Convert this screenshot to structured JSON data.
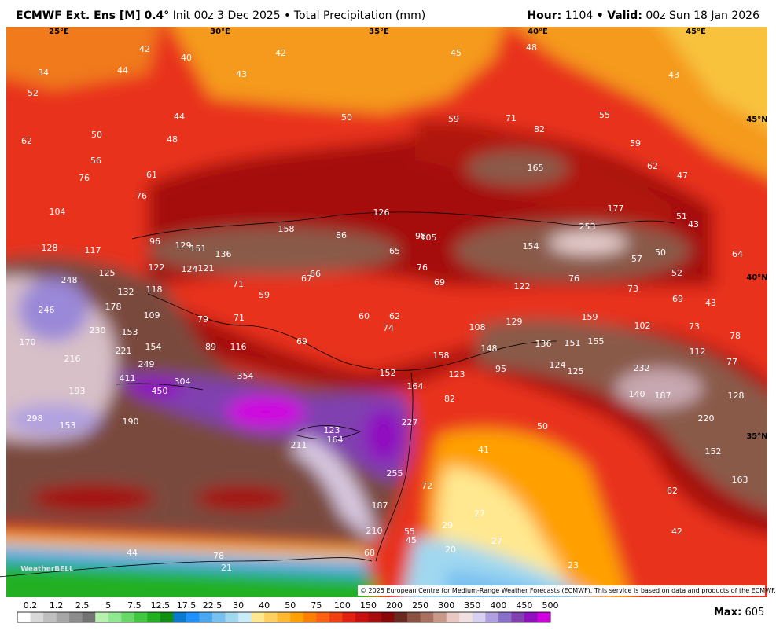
{
  "header": {
    "title": "ECMWF Ext. Ens [M] 0.4°",
    "subtitle": "Init 00z 3 Dec 2025 • Total Precipitation (mm)",
    "hour_label": "Hour:",
    "hour": "1104",
    "separator": "•",
    "valid_label": "Valid:",
    "valid": "00z Sun 18 Jan 2026"
  },
  "map": {
    "longitudes": [
      "25°E",
      "30°E",
      "35°E",
      "40°E",
      "45°E"
    ],
    "latitudes": [
      "45°N",
      "40°N",
      "35°N"
    ],
    "labels": [
      34,
      42,
      40,
      42,
      43,
      45,
      48,
      43,
      44,
      52,
      44,
      50,
      59,
      71,
      82,
      55,
      59,
      62,
      50,
      48,
      56,
      61,
      62,
      47,
      165,
      76,
      76,
      177,
      104,
      126,
      51,
      43,
      253,
      158,
      86,
      98,
      105,
      96,
      129,
      151,
      136,
      154,
      65,
      128,
      117,
      57,
      50,
      64,
      122,
      124,
      121,
      76,
      125,
      66,
      67,
      76,
      52,
      248,
      132,
      118,
      71,
      69,
      122,
      73,
      59,
      69,
      43,
      178,
      246,
      109,
      79,
      71,
      60,
      62,
      159,
      102,
      74,
      108,
      129,
      73,
      78,
      153,
      230,
      69,
      116,
      89,
      154,
      136,
      151,
      155,
      148,
      170,
      221,
      112,
      77,
      216,
      249,
      152,
      124,
      125,
      232,
      95,
      123,
      158,
      411,
      354,
      304,
      164,
      450,
      193,
      140,
      187,
      128,
      82,
      298,
      153,
      190,
      227,
      220,
      123,
      50,
      164,
      211,
      41,
      152,
      255,
      163,
      72,
      62,
      187,
      27,
      29,
      42,
      210,
      55,
      27,
      45,
      20,
      44,
      68,
      78,
      21,
      23
    ],
    "logo": "WeatherBELL",
    "copyright": "© 2025 European Centre for Medium-Range Weather Forecasts (ECMWF). This service is based on data and products of the ECMWF."
  },
  "colorbar": {
    "labels": [
      "0.2",
      "1.2",
      "2.5",
      "5",
      "7.5",
      "12.5",
      "17.5",
      "22.5",
      "30",
      "40",
      "50",
      "75",
      "100",
      "150",
      "200",
      "250",
      "300",
      "350",
      "400",
      "450",
      "500"
    ],
    "colors": [
      "#ffffff",
      "#d9d9d9",
      "#bfbfbf",
      "#a6a6a6",
      "#8c8c8c",
      "#737373",
      "#b8f0b0",
      "#90e890",
      "#68d868",
      "#40c840",
      "#20b020",
      "#109010",
      "#0a7ad0",
      "#1e90ff",
      "#4aa8f0",
      "#78c0f0",
      "#a0d8f0",
      "#c8ecf8",
      "#ffe890",
      "#ffd060",
      "#ffb830",
      "#ffa000",
      "#ff8000",
      "#ff6010",
      "#f04010",
      "#e02010",
      "#c81010",
      "#a80c0c",
      "#880808",
      "#6a2a20",
      "#8a5040",
      "#a87060",
      "#c89888",
      "#e8c8c0",
      "#f0e0e0",
      "#d8d0f0",
      "#b0a0e0",
      "#8870c8",
      "#8040b0",
      "#9010c0",
      "#d000e0"
    ]
  },
  "footer": {
    "max_label": "Max:",
    "max": "605"
  }
}
